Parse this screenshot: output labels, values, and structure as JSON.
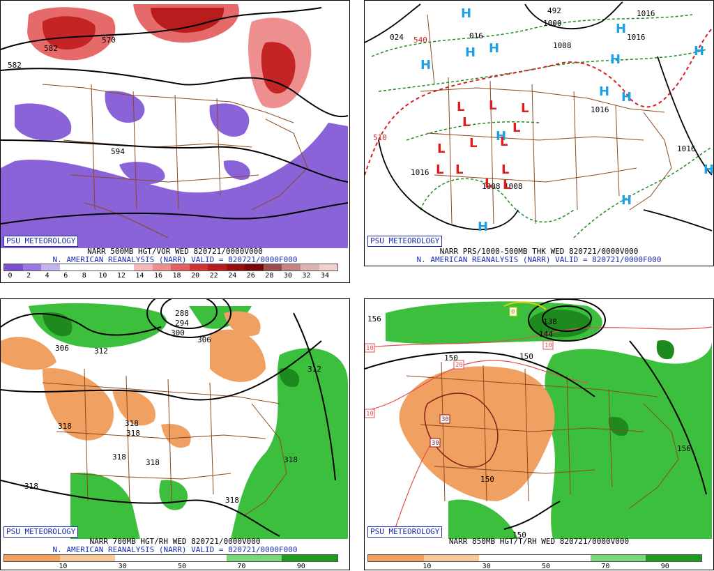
{
  "brand": "PSU METEOROLOGY",
  "reanalysis_caption": "N. AMERICAN REANALYSIS (NARR) VALID = 820721/0000F000",
  "panels": [
    {
      "id": "tl",
      "title": "NARR 500MB HGT/VOR WED 820721/0000V000",
      "scale_labels": [
        "0",
        "2",
        "4",
        "6",
        "8",
        "10",
        "12",
        "14",
        "16",
        "18",
        "20",
        "22",
        "24",
        "26",
        "28",
        "30",
        "32",
        "34"
      ],
      "scale_colors": [
        "#7a4fd0",
        "#9a78e0",
        "#c5b3f0",
        "#ffffff",
        "#ffffff",
        "#ffffff",
        "#ffffff",
        "#f4b8b8",
        "#ee8f8f",
        "#e26060",
        "#cf3535",
        "#b81c1c",
        "#961010",
        "#7a0808",
        "#9a4d4d",
        "#c48484",
        "#e0b3b3",
        "#f0d0d0"
      ],
      "contour_labels": [
        "582",
        "570",
        "582",
        "594"
      ]
    },
    {
      "id": "tr",
      "title": "NARR PRS/1000-500MB THK WED 820721/0000V000",
      "contour_labels": [
        "024",
        "540",
        "016",
        "1000",
        "1008",
        "1016",
        "1016",
        "1016",
        "1008",
        "510",
        "1016",
        "1008",
        "1016",
        "492"
      ],
      "high_marker": "H",
      "low_marker": "L"
    },
    {
      "id": "bl",
      "title": "NARR 700MB HGT/RH WED 820721/0000V000",
      "scale_labels": [
        "10",
        "30",
        "50",
        "70",
        "90"
      ],
      "scale_colors": [
        "#f0a060",
        "#f7c99a",
        "#ffffff",
        "#ffffff",
        "#7ad67a",
        "#1e9a1e"
      ],
      "contour_labels": [
        "288",
        "294",
        "300",
        "306",
        "306",
        "312",
        "312",
        "318",
        "318",
        "318",
        "318",
        "318",
        "318",
        "318",
        "318"
      ]
    },
    {
      "id": "br",
      "title": "NARR 850MB HGT/T/RH WED 820721/0000V000",
      "scale_labels": [
        "10",
        "30",
        "50",
        "70",
        "90"
      ],
      "scale_colors": [
        "#f0a060",
        "#f7c99a",
        "#ffffff",
        "#ffffff",
        "#7ad67a",
        "#1e9a1e"
      ],
      "contour_labels": [
        "156",
        "138",
        "144",
        "150",
        "150",
        "150",
        "150",
        "156"
      ],
      "temp_labels": [
        "10",
        "10",
        "20",
        "10",
        "30",
        "30",
        "0"
      ]
    }
  ]
}
